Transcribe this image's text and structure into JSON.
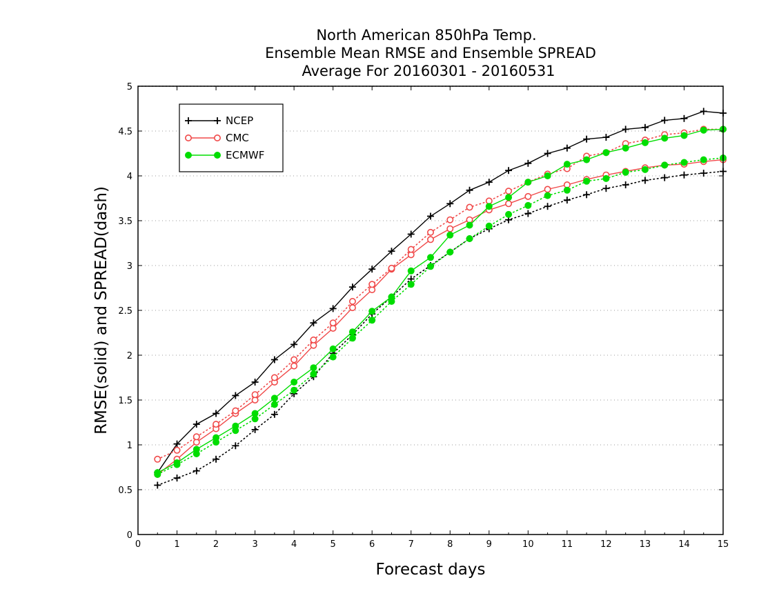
{
  "chart_data": {
    "type": "line",
    "title": [
      "North American 850hPa Temp.",
      "Ensemble Mean RMSE and Ensemble SPREAD",
      "Average For 20160301 - 20160531"
    ],
    "xlabel": "Forecast days",
    "ylabel": "RMSE(solid) and SPREAD(dash)",
    "xlim": [
      0,
      15
    ],
    "ylim": [
      0,
      5
    ],
    "x_ticks": [
      "0",
      "1",
      "2",
      "3",
      "4",
      "5",
      "6",
      "7",
      "8",
      "9",
      "10",
      "11",
      "12",
      "13",
      "14",
      "15"
    ],
    "y_ticks": [
      "0",
      "0.5",
      "1",
      "1.5",
      "2",
      "2.5",
      "3",
      "3.5",
      "4",
      "4.5",
      "5"
    ],
    "grid": "horizontal dotted",
    "legend_position": "top-left",
    "x": [
      0.5,
      1,
      1.5,
      2,
      2.5,
      3,
      3.5,
      4,
      4.5,
      5,
      5.5,
      6,
      6.5,
      7,
      7.5,
      8,
      8.5,
      9,
      9.5,
      10,
      10.5,
      11,
      11.5,
      12,
      12.5,
      13,
      13.5,
      14,
      14.5,
      15
    ],
    "series": [
      {
        "name": "NCEP",
        "color": "#000000",
        "marker": "plus",
        "rmse": [
          0.69,
          1.01,
          1.23,
          1.35,
          1.55,
          1.7,
          1.95,
          2.12,
          2.36,
          2.52,
          2.76,
          2.96,
          3.16,
          3.35,
          3.55,
          3.69,
          3.84,
          3.93,
          4.06,
          4.14,
          4.25,
          4.31,
          4.41,
          4.43,
          4.52,
          4.54,
          4.62,
          4.64,
          4.72,
          4.7
        ],
        "spread": [
          0.55,
          0.63,
          0.71,
          0.84,
          0.99,
          1.17,
          1.34,
          1.57,
          1.76,
          2.02,
          2.23,
          2.46,
          2.65,
          2.85,
          3.0,
          3.15,
          3.3,
          3.41,
          3.51,
          3.58,
          3.66,
          3.73,
          3.79,
          3.86,
          3.9,
          3.95,
          3.98,
          4.01,
          4.03,
          4.05
        ]
      },
      {
        "name": "CMC",
        "color": "#f04848",
        "marker": "open-circle",
        "rmse": [
          0.67,
          0.84,
          1.03,
          1.18,
          1.35,
          1.5,
          1.7,
          1.88,
          2.11,
          2.3,
          2.53,
          2.73,
          2.96,
          3.12,
          3.29,
          3.41,
          3.51,
          3.62,
          3.69,
          3.77,
          3.85,
          3.9,
          3.96,
          4.01,
          4.05,
          4.09,
          4.12,
          4.13,
          4.16,
          4.18
        ],
        "spread": [
          0.84,
          0.94,
          1.09,
          1.23,
          1.38,
          1.56,
          1.75,
          1.95,
          2.17,
          2.36,
          2.6,
          2.79,
          2.97,
          3.18,
          3.37,
          3.51,
          3.65,
          3.72,
          3.83,
          3.93,
          4.02,
          4.08,
          4.22,
          4.26,
          4.36,
          4.4,
          4.46,
          4.48,
          4.52,
          4.52
        ]
      },
      {
        "name": "ECMWF",
        "color": "#00dd00",
        "marker": "filled-circle",
        "rmse": [
          0.69,
          0.8,
          0.95,
          1.08,
          1.21,
          1.35,
          1.52,
          1.7,
          1.86,
          2.07,
          2.26,
          2.49,
          2.65,
          2.94,
          3.09,
          3.34,
          3.45,
          3.66,
          3.76,
          3.93,
          4.0,
          4.13,
          4.18,
          4.26,
          4.31,
          4.37,
          4.42,
          4.45,
          4.51,
          4.52
        ],
        "spread": [
          0.67,
          0.78,
          0.9,
          1.03,
          1.16,
          1.29,
          1.45,
          1.61,
          1.79,
          1.98,
          2.19,
          2.39,
          2.6,
          2.79,
          2.99,
          3.15,
          3.3,
          3.44,
          3.57,
          3.67,
          3.78,
          3.84,
          3.94,
          3.97,
          4.04,
          4.07,
          4.12,
          4.15,
          4.18,
          4.2
        ]
      }
    ]
  }
}
